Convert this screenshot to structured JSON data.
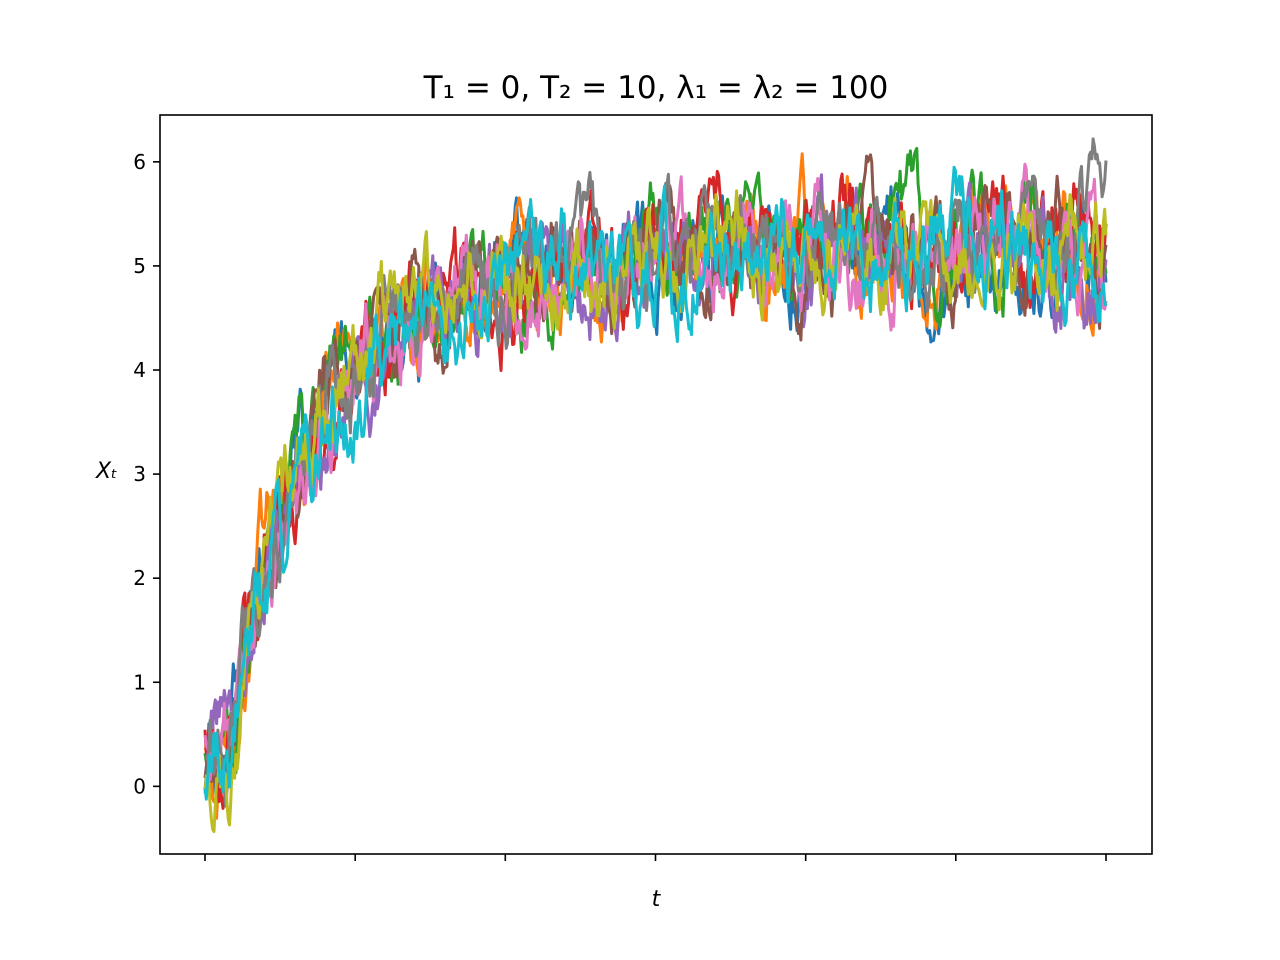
{
  "chart_data": {
    "type": "line",
    "title": "T₁ = 0, T₂ = 10, λ₁ = λ₂ = 100",
    "xlabel": "t",
    "ylabel": "Xₜ",
    "xlim": [
      0,
      10
    ],
    "ylim": [
      -0.65,
      6.45
    ],
    "yticks": [
      0,
      1,
      2,
      3,
      4,
      5,
      6
    ],
    "ytick_labels": [
      "0",
      "1",
      "2",
      "3",
      "4",
      "5",
      "6"
    ],
    "xticks": [
      0,
      1.667,
      3.333,
      5,
      6.667,
      8.333,
      10
    ],
    "xtick_labels": [
      "",
      "",
      "",
      "",
      "",
      "",
      ""
    ],
    "grid": false,
    "legend": "none",
    "series_count": 10,
    "trend": {
      "x": [
        0,
        0.25,
        0.5,
        0.75,
        1.0,
        1.5,
        2.0,
        2.5,
        3.0,
        3.5,
        4.0,
        5.0,
        6.0,
        7.0,
        8.0,
        9.0,
        10.0
      ],
      "mean": [
        0.2,
        0.3,
        1.4,
        2.2,
        2.9,
        3.8,
        4.3,
        4.6,
        4.75,
        4.85,
        4.95,
        5.05,
        5.12,
        5.15,
        5.18,
        5.2,
        5.2
      ]
    },
    "series": [
      {
        "color": "#1f77b4",
        "values": [
          0.2,
          0.3,
          1.5,
          2.2,
          3.0,
          3.9,
          4.3,
          4.6,
          4.8,
          4.9,
          5.0,
          5.1,
          5.1,
          5.2,
          5.2,
          5.2,
          5.1
        ]
      },
      {
        "color": "#ff7f0e",
        "values": [
          0.3,
          0.2,
          1.4,
          2.5,
          2.9,
          3.8,
          4.4,
          4.7,
          4.7,
          4.8,
          4.9,
          5.0,
          5.1,
          5.1,
          5.2,
          5.3,
          5.0
        ]
      },
      {
        "color": "#2ca02c",
        "values": [
          0.2,
          0.3,
          1.3,
          2.2,
          3.0,
          3.9,
          4.3,
          4.6,
          4.8,
          4.9,
          5.0,
          5.1,
          5.2,
          5.2,
          5.3,
          5.2,
          5.4
        ]
      },
      {
        "color": "#d62728",
        "values": [
          0.3,
          0.4,
          1.5,
          2.3,
          2.8,
          3.8,
          4.3,
          4.6,
          4.8,
          4.9,
          5.0,
          5.2,
          5.1,
          5.3,
          5.2,
          5.2,
          5.3
        ]
      },
      {
        "color": "#9467bd",
        "values": [
          0.2,
          0.3,
          1.3,
          2.1,
          2.9,
          3.7,
          4.2,
          4.5,
          4.7,
          4.8,
          4.9,
          5.0,
          5.1,
          5.2,
          5.1,
          5.1,
          4.7
        ]
      },
      {
        "color": "#8c564b",
        "values": [
          0.2,
          0.2,
          1.5,
          2.4,
          3.1,
          3.8,
          4.3,
          4.6,
          4.7,
          4.8,
          5.0,
          5.1,
          5.1,
          5.1,
          5.2,
          5.2,
          5.1
        ]
      },
      {
        "color": "#e377c2",
        "values": [
          0.3,
          0.3,
          1.4,
          2.3,
          2.8,
          3.8,
          4.4,
          4.6,
          4.7,
          4.8,
          5.0,
          5.1,
          5.2,
          5.1,
          5.2,
          5.3,
          5.2
        ]
      },
      {
        "color": "#7f7f7f",
        "values": [
          0.2,
          0.4,
          1.5,
          2.2,
          3.0,
          3.9,
          4.3,
          4.7,
          4.8,
          4.9,
          5.0,
          5.1,
          5.2,
          5.2,
          5.2,
          5.2,
          5.6
        ]
      },
      {
        "color": "#bcbd22",
        "values": [
          0.2,
          0.1,
          1.4,
          2.3,
          2.9,
          3.9,
          4.5,
          4.7,
          4.8,
          4.9,
          5.1,
          5.2,
          5.2,
          5.2,
          5.3,
          5.2,
          5.3
        ]
      },
      {
        "color": "#17becf",
        "values": [
          0.2,
          0.3,
          1.2,
          2.0,
          2.8,
          3.8,
          4.2,
          4.5,
          4.7,
          4.8,
          4.9,
          5.0,
          5.1,
          5.1,
          5.1,
          5.2,
          4.8
        ]
      }
    ]
  }
}
